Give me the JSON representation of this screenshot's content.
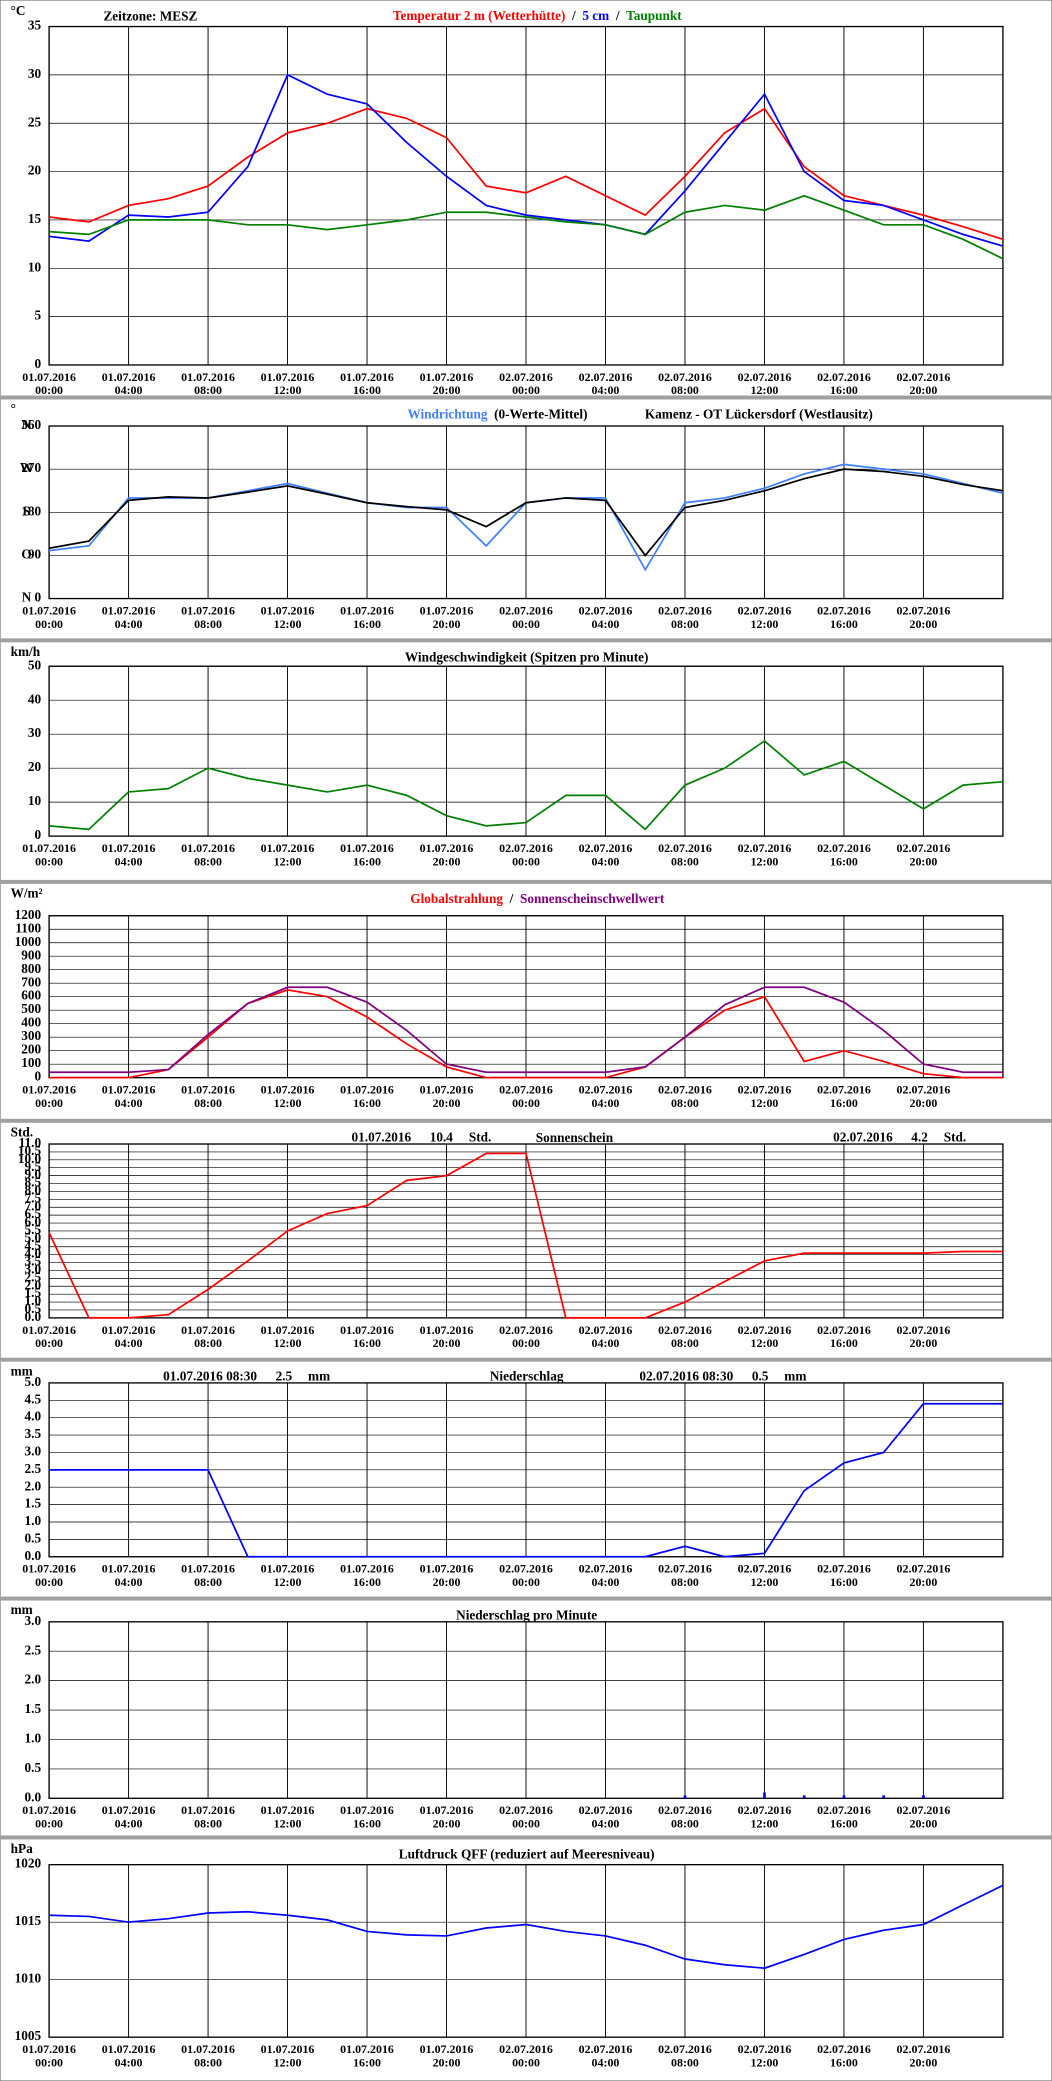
{
  "chart_data": [
    {
      "type": "line",
      "timezone": "Zeitzone: MESZ",
      "ylabel": "°C",
      "legend": "top-center",
      "legend_separator": "/",
      "grid": true,
      "x": [
        "01.07.2016 00:00",
        "01.07.2016 02:00",
        "01.07.2016 04:00",
        "01.07.2016 06:00",
        "01.07.2016 08:00",
        "01.07.2016 10:00",
        "01.07.2016 12:00",
        "01.07.2016 14:00",
        "01.07.2016 16:00",
        "01.07.2016 18:00",
        "01.07.2016 20:00",
        "01.07.2016 22:00",
        "02.07.2016 00:00",
        "02.07.2016 02:00",
        "02.07.2016 04:00",
        "02.07.2016 06:00",
        "02.07.2016 08:00",
        "02.07.2016 10:00",
        "02.07.2016 12:00",
        "02.07.2016 14:00",
        "02.07.2016 16:00",
        "02.07.2016 18:00",
        "02.07.2016 20:00",
        "02.07.2016 22:00",
        "02.07.2016 24:00"
      ],
      "xlim": [
        "01.07.2016 00:00",
        "02.07.2016 24:00"
      ],
      "xticks": [
        "01.07.2016 00:00",
        "01.07.2016 04:00",
        "01.07.2016 08:00",
        "01.07.2016 12:00",
        "01.07.2016 16:00",
        "01.07.2016 20:00",
        "02.07.2016 00:00",
        "02.07.2016 04:00",
        "02.07.2016 08:00",
        "02.07.2016 12:00",
        "02.07.2016 16:00",
        "02.07.2016 20:00"
      ],
      "ylim": [
        0,
        35
      ],
      "yticks": [
        0,
        5,
        10,
        15,
        20,
        25,
        30,
        35
      ],
      "series": [
        {
          "name": "Temperatur 2 m (Wetterhütte)",
          "color": "#ff0000",
          "values": [
            15.3,
            14.8,
            16.5,
            17.2,
            18.5,
            21.5,
            24,
            25,
            26.5,
            25.5,
            23.5,
            18.5,
            17.8,
            19.5,
            17.5,
            15.5,
            19.5,
            24,
            26.5,
            20.5,
            17.5,
            16.5,
            15.5,
            14.3,
            13
          ]
        },
        {
          "name": "5 cm",
          "color": "#0000ff",
          "values": [
            13.3,
            12.8,
            15.5,
            15.3,
            15.8,
            20.5,
            30,
            28,
            27,
            23,
            19.5,
            16.5,
            15.5,
            15,
            14.5,
            13.5,
            18,
            23,
            28,
            20,
            17,
            16.5,
            15,
            13.5,
            12.3
          ]
        },
        {
          "name": "Taupunkt",
          "color": "#008000",
          "values": [
            13.8,
            13.5,
            15,
            15,
            15,
            14.5,
            14.5,
            14,
            14.5,
            15,
            15.8,
            15.8,
            15.3,
            14.8,
            14.5,
            13.5,
            15.8,
            16.5,
            16,
            17.5,
            16,
            14.5,
            14.5,
            13,
            11
          ]
        }
      ]
    },
    {
      "type": "line",
      "ylabel": "°",
      "subtitle": "Kamenz - OT Lückersdorf (Westlausitz)",
      "legend": "top-center",
      "grid": true,
      "x": [
        "01.07.2016 00:00",
        "01.07.2016 02:00",
        "01.07.2016 04:00",
        "01.07.2016 06:00",
        "01.07.2016 08:00",
        "01.07.2016 10:00",
        "01.07.2016 12:00",
        "01.07.2016 14:00",
        "01.07.2016 16:00",
        "01.07.2016 18:00",
        "01.07.2016 20:00",
        "01.07.2016 22:00",
        "02.07.2016 00:00",
        "02.07.2016 02:00",
        "02.07.2016 04:00",
        "02.07.2016 06:00",
        "02.07.2016 08:00",
        "02.07.2016 10:00",
        "02.07.2016 12:00",
        "02.07.2016 14:00",
        "02.07.2016 16:00",
        "02.07.2016 18:00",
        "02.07.2016 20:00",
        "02.07.2016 22:00",
        "02.07.2016 24:00"
      ],
      "xlim": [
        "01.07.2016 00:00",
        "02.07.2016 24:00"
      ],
      "xticks": [
        "01.07.2016 00:00",
        "01.07.2016 04:00",
        "01.07.2016 08:00",
        "01.07.2016 12:00",
        "01.07.2016 16:00",
        "01.07.2016 20:00",
        "02.07.2016 00:00",
        "02.07.2016 04:00",
        "02.07.2016 08:00",
        "02.07.2016 12:00",
        "02.07.2016 16:00",
        "02.07.2016 20:00"
      ],
      "ylim": [
        0,
        360
      ],
      "yticks": [
        0,
        90,
        180,
        270,
        360
      ],
      "ytick_letters": [
        "N",
        "O",
        "S",
        "W",
        "N"
      ],
      "series": [
        {
          "name": "Windrichtung",
          "color": "#3f7fff",
          "values": [
            100,
            110,
            210,
            210,
            210,
            225,
            240,
            220,
            200,
            190,
            190,
            110,
            200,
            210,
            210,
            60,
            200,
            210,
            230,
            260,
            280,
            270,
            260,
            240,
            220
          ]
        },
        {
          "name": "(0-Werte-Mittel)",
          "color": "#000000",
          "values": [
            105,
            120,
            205,
            212,
            210,
            222,
            235,
            218,
            200,
            192,
            185,
            150,
            200,
            210,
            205,
            90,
            190,
            205,
            225,
            250,
            270,
            265,
            255,
            238,
            225
          ]
        }
      ]
    },
    {
      "type": "line",
      "title": "Windgeschwindigkeit (Spitzen pro Minute)",
      "ylabel": "km/h",
      "grid": true,
      "color": "#008000",
      "x": [
        "01.07.2016 00:00",
        "01.07.2016 02:00",
        "01.07.2016 04:00",
        "01.07.2016 06:00",
        "01.07.2016 08:00",
        "01.07.2016 10:00",
        "01.07.2016 12:00",
        "01.07.2016 14:00",
        "01.07.2016 16:00",
        "01.07.2016 18:00",
        "01.07.2016 20:00",
        "01.07.2016 22:00",
        "02.07.2016 00:00",
        "02.07.2016 02:00",
        "02.07.2016 04:00",
        "02.07.2016 06:00",
        "02.07.2016 08:00",
        "02.07.2016 10:00",
        "02.07.2016 12:00",
        "02.07.2016 14:00",
        "02.07.2016 16:00",
        "02.07.2016 18:00",
        "02.07.2016 20:00",
        "02.07.2016 22:00",
        "02.07.2016 24:00"
      ],
      "xlim": [
        "01.07.2016 00:00",
        "02.07.2016 24:00"
      ],
      "xticks": [
        "01.07.2016 00:00",
        "01.07.2016 04:00",
        "01.07.2016 08:00",
        "01.07.2016 12:00",
        "01.07.2016 16:00",
        "01.07.2016 20:00",
        "02.07.2016 00:00",
        "02.07.2016 04:00",
        "02.07.2016 08:00",
        "02.07.2016 12:00",
        "02.07.2016 16:00",
        "02.07.2016 20:00"
      ],
      "ylim": [
        0,
        50
      ],
      "yticks": [
        0,
        10,
        20,
        30,
        40,
        50
      ],
      "values": [
        3,
        2,
        13,
        14,
        20,
        17,
        15,
        13,
        15,
        12,
        6,
        3,
        4,
        12,
        12,
        2,
        15,
        20,
        28,
        18,
        22,
        15,
        8,
        15,
        16
      ]
    },
    {
      "type": "line",
      "ylabel": "W/m²",
      "legend": "top-center",
      "legend_separator": "/",
      "grid": true,
      "x": [
        "01.07.2016 00:00",
        "01.07.2016 02:00",
        "01.07.2016 04:00",
        "01.07.2016 06:00",
        "01.07.2016 08:00",
        "01.07.2016 10:00",
        "01.07.2016 12:00",
        "01.07.2016 14:00",
        "01.07.2016 16:00",
        "01.07.2016 18:00",
        "01.07.2016 20:00",
        "01.07.2016 22:00",
        "02.07.2016 00:00",
        "02.07.2016 02:00",
        "02.07.2016 04:00",
        "02.07.2016 06:00",
        "02.07.2016 08:00",
        "02.07.2016 10:00",
        "02.07.2016 12:00",
        "02.07.2016 14:00",
        "02.07.2016 16:00",
        "02.07.2016 18:00",
        "02.07.2016 20:00",
        "02.07.2016 22:00",
        "02.07.2016 24:00"
      ],
      "xlim": [
        "01.07.2016 00:00",
        "02.07.2016 24:00"
      ],
      "xticks": [
        "01.07.2016 00:00",
        "01.07.2016 04:00",
        "01.07.2016 08:00",
        "01.07.2016 12:00",
        "01.07.2016 16:00",
        "01.07.2016 20:00",
        "02.07.2016 00:00",
        "02.07.2016 04:00",
        "02.07.2016 08:00",
        "02.07.2016 12:00",
        "02.07.2016 16:00",
        "02.07.2016 20:00"
      ],
      "ylim": [
        0,
        1200
      ],
      "yticks": [
        0,
        100,
        200,
        300,
        400,
        500,
        600,
        700,
        800,
        900,
        1000,
        1100,
        1200
      ],
      "series": [
        {
          "name": "Globalstrahlung",
          "color": "#ff0000",
          "values": [
            0,
            0,
            0,
            60,
            300,
            550,
            650,
            600,
            450,
            250,
            80,
            0,
            0,
            0,
            0,
            80,
            300,
            500,
            600,
            120,
            200,
            120,
            30,
            0,
            0
          ]
        },
        {
          "name": "Sonnenscheinschwellwert",
          "color": "#800080",
          "values": [
            40,
            40,
            40,
            60,
            320,
            550,
            670,
            670,
            560,
            350,
            100,
            40,
            40,
            40,
            40,
            80,
            300,
            540,
            670,
            670,
            560,
            350,
            100,
            40,
            40
          ]
        }
      ]
    },
    {
      "type": "line",
      "title": "Sonnenschein",
      "ylabel": "Std.",
      "grid": true,
      "color": "#ff0000",
      "annotations": [
        {
          "date": "01.07.2016",
          "value": 10.4,
          "unit": "Std."
        },
        {
          "date": "02.07.2016",
          "value": 4.2,
          "unit": "Std."
        }
      ],
      "x": [
        "01.07.2016 00:00",
        "01.07.2016 02:00",
        "01.07.2016 04:00",
        "01.07.2016 06:00",
        "01.07.2016 08:00",
        "01.07.2016 10:00",
        "01.07.2016 12:00",
        "01.07.2016 14:00",
        "01.07.2016 16:00",
        "01.07.2016 18:00",
        "01.07.2016 20:00",
        "01.07.2016 22:00",
        "02.07.2016 00:00",
        "02.07.2016 02:00",
        "02.07.2016 04:00",
        "02.07.2016 06:00",
        "02.07.2016 08:00",
        "02.07.2016 10:00",
        "02.07.2016 12:00",
        "02.07.2016 14:00",
        "02.07.2016 16:00",
        "02.07.2016 18:00",
        "02.07.2016 20:00",
        "02.07.2016 22:00",
        "02.07.2016 24:00"
      ],
      "xlim": [
        "01.07.2016 00:00",
        "02.07.2016 24:00"
      ],
      "xticks": [
        "01.07.2016 00:00",
        "01.07.2016 04:00",
        "01.07.2016 08:00",
        "01.07.2016 12:00",
        "01.07.2016 16:00",
        "01.07.2016 20:00",
        "02.07.2016 00:00",
        "02.07.2016 04:00",
        "02.07.2016 08:00",
        "02.07.2016 12:00",
        "02.07.2016 16:00",
        "02.07.2016 20:00"
      ],
      "ylim": [
        0,
        11
      ],
      "yticks": [
        {
          "value": 0,
          "label": "0.0"
        },
        0.5,
        {
          "value": 1,
          "label": "1.0"
        },
        1.5,
        {
          "value": 2,
          "label": "2.0"
        },
        2.5,
        {
          "value": 3,
          "label": "3.0"
        },
        3.5,
        {
          "value": 4,
          "label": "4.0"
        },
        4.5,
        {
          "value": 5,
          "label": "5.0"
        },
        5.5,
        {
          "value": 6,
          "label": "6.0"
        },
        6.5,
        {
          "value": 7,
          "label": "7.0"
        },
        7.5,
        {
          "value": 8,
          "label": "8.0"
        },
        8.5,
        {
          "value": 9,
          "label": "9.0"
        },
        9.5,
        {
          "value": 10,
          "label": "10.0"
        },
        10.5,
        {
          "value": 11,
          "label": "11.0"
        }
      ],
      "values": [
        5.4,
        0,
        0,
        0.2,
        1.8,
        3.6,
        5.5,
        6.6,
        7.1,
        8.7,
        9,
        10.4,
        10.4,
        0,
        0,
        0,
        1,
        2.3,
        3.6,
        4.1,
        4.1,
        4.1,
        4.1,
        4.2,
        4.2
      ]
    },
    {
      "type": "line",
      "title": "Niederschlag",
      "ylabel": "mm",
      "grid": true,
      "color": "#0000ff",
      "annotations": [
        {
          "date": "01.07.2016 08:30",
          "value": 2.5,
          "unit": "mm"
        },
        {
          "date": "02.07.2016 08:30",
          "value": 0.5,
          "unit": "mm"
        }
      ],
      "x": [
        "01.07.2016 00:00",
        "01.07.2016 02:00",
        "01.07.2016 04:00",
        "01.07.2016 06:00",
        "01.07.2016 08:00",
        "01.07.2016 10:00",
        "01.07.2016 12:00",
        "01.07.2016 14:00",
        "01.07.2016 16:00",
        "01.07.2016 18:00",
        "01.07.2016 20:00",
        "01.07.2016 22:00",
        "02.07.2016 00:00",
        "02.07.2016 02:00",
        "02.07.2016 04:00",
        "02.07.2016 06:00",
        "02.07.2016 08:00",
        "02.07.2016 10:00",
        "02.07.2016 12:00",
        "02.07.2016 14:00",
        "02.07.2016 16:00",
        "02.07.2016 18:00",
        "02.07.2016 20:00",
        "02.07.2016 22:00",
        "02.07.2016 24:00"
      ],
      "xlim": [
        "01.07.2016 00:00",
        "02.07.2016 24:00"
      ],
      "xticks": [
        "01.07.2016 00:00",
        "01.07.2016 04:00",
        "01.07.2016 08:00",
        "01.07.2016 12:00",
        "01.07.2016 16:00",
        "01.07.2016 20:00",
        "02.07.2016 00:00",
        "02.07.2016 04:00",
        "02.07.2016 08:00",
        "02.07.2016 12:00",
        "02.07.2016 16:00",
        "02.07.2016 20:00"
      ],
      "ylim": [
        0,
        5
      ],
      "yticks": [
        {
          "value": 0,
          "label": "0.0"
        },
        0.5,
        {
          "value": 1,
          "label": "1.0"
        },
        1.5,
        {
          "value": 2,
          "label": "2.0"
        },
        2.5,
        {
          "value": 3,
          "label": "3.0"
        },
        3.5,
        {
          "value": 4,
          "label": "4.0"
        },
        4.5,
        {
          "value": 5,
          "label": "5.0"
        }
      ],
      "values": [
        2.5,
        2.5,
        2.5,
        2.5,
        2.5,
        0,
        0,
        0,
        0,
        0,
        0,
        0,
        0,
        0,
        0,
        0,
        0.3,
        0,
        0.1,
        1.9,
        2.7,
        3,
        4.4,
        4.4,
        4.4
      ]
    },
    {
      "type": "bar",
      "title": "Niederschlag pro Minute",
      "ylabel": "mm",
      "grid": true,
      "color": "#0000ff",
      "x": [
        "01.07.2016 00:00",
        "01.07.2016 02:00",
        "01.07.2016 04:00",
        "01.07.2016 06:00",
        "01.07.2016 08:00",
        "01.07.2016 10:00",
        "01.07.2016 12:00",
        "01.07.2016 14:00",
        "01.07.2016 16:00",
        "01.07.2016 18:00",
        "01.07.2016 20:00",
        "01.07.2016 22:00",
        "02.07.2016 00:00",
        "02.07.2016 02:00",
        "02.07.2016 04:00",
        "02.07.2016 06:00",
        "02.07.2016 08:00",
        "02.07.2016 10:00",
        "02.07.2016 12:00",
        "02.07.2016 14:00",
        "02.07.2016 16:00",
        "02.07.2016 18:00",
        "02.07.2016 20:00",
        "02.07.2016 22:00",
        "02.07.2016 24:00"
      ],
      "xlim": [
        "01.07.2016 00:00",
        "02.07.2016 24:00"
      ],
      "xticks": [
        "01.07.2016 00:00",
        "01.07.2016 04:00",
        "01.07.2016 08:00",
        "01.07.2016 12:00",
        "01.07.2016 16:00",
        "01.07.2016 20:00",
        "02.07.2016 00:00",
        "02.07.2016 04:00",
        "02.07.2016 08:00",
        "02.07.2016 12:00",
        "02.07.2016 16:00",
        "02.07.2016 20:00"
      ],
      "ylim": [
        0,
        3
      ],
      "yticks": [
        {
          "value": 0,
          "label": "0.0"
        },
        0.5,
        {
          "value": 1,
          "label": "1.0"
        },
        1.5,
        {
          "value": 2,
          "label": "2.0"
        },
        2.5,
        {
          "value": 3,
          "label": "3.0"
        }
      ],
      "values": [
        0,
        0,
        0,
        0,
        0,
        0,
        0,
        0,
        0,
        0,
        0,
        0,
        0,
        0,
        0,
        0,
        0.05,
        0,
        0.1,
        0.05,
        0.05,
        0.05,
        0.05,
        0,
        0
      ]
    },
    {
      "type": "line",
      "title": "Luftdruck QFF (reduziert auf Meeresniveau)",
      "ylabel": "hPa",
      "grid": true,
      "color": "#0000ff",
      "x": [
        "01.07.2016 00:00",
        "01.07.2016 02:00",
        "01.07.2016 04:00",
        "01.07.2016 06:00",
        "01.07.2016 08:00",
        "01.07.2016 10:00",
        "01.07.2016 12:00",
        "01.07.2016 14:00",
        "01.07.2016 16:00",
        "01.07.2016 18:00",
        "01.07.2016 20:00",
        "01.07.2016 22:00",
        "02.07.2016 00:00",
        "02.07.2016 02:00",
        "02.07.2016 04:00",
        "02.07.2016 06:00",
        "02.07.2016 08:00",
        "02.07.2016 10:00",
        "02.07.2016 12:00",
        "02.07.2016 14:00",
        "02.07.2016 16:00",
        "02.07.2016 18:00",
        "02.07.2016 20:00",
        "02.07.2016 22:00",
        "02.07.2016 24:00"
      ],
      "xlim": [
        "01.07.2016 00:00",
        "02.07.2016 24:00"
      ],
      "xticks": [
        "01.07.2016 00:00",
        "01.07.2016 04:00",
        "01.07.2016 08:00",
        "01.07.2016 12:00",
        "01.07.2016 16:00",
        "01.07.2016 20:00",
        "02.07.2016 00:00",
        "02.07.2016 04:00",
        "02.07.2016 08:00",
        "02.07.2016 12:00",
        "02.07.2016 16:00",
        "02.07.2016 20:00"
      ],
      "ylim": [
        1005,
        1020
      ],
      "yticks": [
        1005,
        1010,
        1015,
        1020
      ],
      "values": [
        1015.6,
        1015.5,
        1015,
        1015.3,
        1015.8,
        1015.9,
        1015.6,
        1015.2,
        1014.2,
        1013.9,
        1013.8,
        1014.5,
        1014.8,
        1014.2,
        1013.8,
        1013,
        1011.8,
        1011.3,
        1011,
        1012.2,
        1013.5,
        1014.3,
        1014.8,
        1016.5,
        1018.2
      ]
    }
  ]
}
